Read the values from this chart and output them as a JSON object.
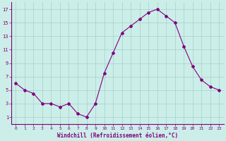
{
  "x": [
    0,
    1,
    2,
    3,
    4,
    5,
    6,
    7,
    8,
    9,
    10,
    11,
    12,
    13,
    14,
    15,
    16,
    17,
    18,
    19,
    20,
    21,
    22,
    23
  ],
  "y": [
    6,
    5,
    4.5,
    3,
    3,
    2.5,
    3,
    1.5,
    1,
    3,
    7.5,
    10.5,
    13.5,
    14.5,
    15.5,
    16.5,
    17,
    16,
    15,
    11.5,
    8.5,
    6.5,
    5.5,
    5
  ],
  "line_color": "#800080",
  "marker": "D",
  "marker_size": 2.0,
  "bg_color": "#cceee8",
  "grid_color": "#aad4ce",
  "xlabel": "Windchill (Refroidissement éolien,°C)",
  "xlabel_color": "#800080",
  "tick_color": "#800080",
  "xlim": [
    -0.5,
    23.5
  ],
  "ylim": [
    0,
    18
  ],
  "yticks": [
    1,
    3,
    5,
    7,
    9,
    11,
    13,
    15,
    17
  ],
  "xticks": [
    0,
    1,
    2,
    3,
    4,
    5,
    6,
    7,
    8,
    9,
    10,
    11,
    12,
    13,
    14,
    15,
    16,
    17,
    18,
    19,
    20,
    21,
    22,
    23
  ]
}
